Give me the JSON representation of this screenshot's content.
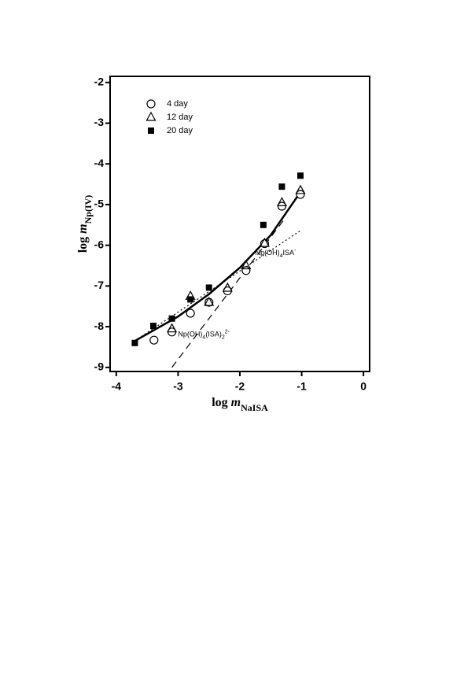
{
  "chart_data": {
    "type": "scatter",
    "xlabel": [
      "log ",
      "m",
      "NaISA"
    ],
    "ylabel": [
      "log ",
      "m",
      "Np(IV)"
    ],
    "xlim": [
      -4.1,
      0.1
    ],
    "ylim": [
      -9.1,
      -1.85
    ],
    "xticks": [
      -4,
      -3,
      -2,
      -1,
      0
    ],
    "yticks": [
      -2,
      -3,
      -4,
      -5,
      -6,
      -7,
      -8,
      -9
    ],
    "legend": "upper left",
    "series": [
      {
        "name": "4 day",
        "marker": "circle",
        "color": "#000",
        "x": [
          -3.39,
          -3.1,
          -2.8,
          -2.5,
          -2.2,
          -1.9,
          -1.6,
          -1.32,
          -1.02
        ],
        "values": [
          -8.33,
          -8.13,
          -7.67,
          -7.4,
          -7.12,
          -6.62,
          -5.96,
          -5.04,
          -4.75
        ]
      },
      {
        "name": "12 day",
        "marker": "triangle",
        "color": "#000",
        "x": [
          -3.1,
          -2.8,
          -2.5,
          -2.2,
          -1.9,
          -1.6,
          -1.32,
          -1.02
        ],
        "values": [
          -8.05,
          -7.25,
          -7.4,
          -7.05,
          -6.5,
          -5.95,
          -4.95,
          -4.65
        ]
      },
      {
        "name": "20 day",
        "marker": "square",
        "color": "#000",
        "x": [
          -3.7,
          -3.4,
          -3.1,
          -2.8,
          -2.5,
          -1.62,
          -1.32,
          -1.02
        ],
        "values": [
          -8.4,
          -7.98,
          -7.8,
          -7.33,
          -7.04,
          -5.5,
          -4.56,
          -4.29
        ]
      }
    ],
    "lines": [
      {
        "style": "solid",
        "x": [
          -3.7,
          -3.0,
          -2.5,
          -2.0,
          -1.5,
          -1.0
        ],
        "values": [
          -8.35,
          -7.75,
          -7.2,
          -6.55,
          -5.75,
          -4.65
        ]
      },
      {
        "style": "dotted",
        "x": [
          -3.7,
          -1.0
        ],
        "values": [
          -8.35,
          -5.62
        ]
      },
      {
        "style": "dashed",
        "x": [
          -3.1,
          -1.3
        ],
        "values": [
          -9.0,
          -5.4
        ]
      }
    ],
    "annotations": [
      {
        "parts": [
          "Np(OH)",
          "4",
          "ISA",
          "-"
        ],
        "x": -1.75,
        "y": -6.2
      },
      {
        "parts": [
          "Np(OH)",
          "4",
          "(ISA)",
          "2",
          "2-"
        ],
        "x": -3.0,
        "y": -8.2
      }
    ]
  }
}
